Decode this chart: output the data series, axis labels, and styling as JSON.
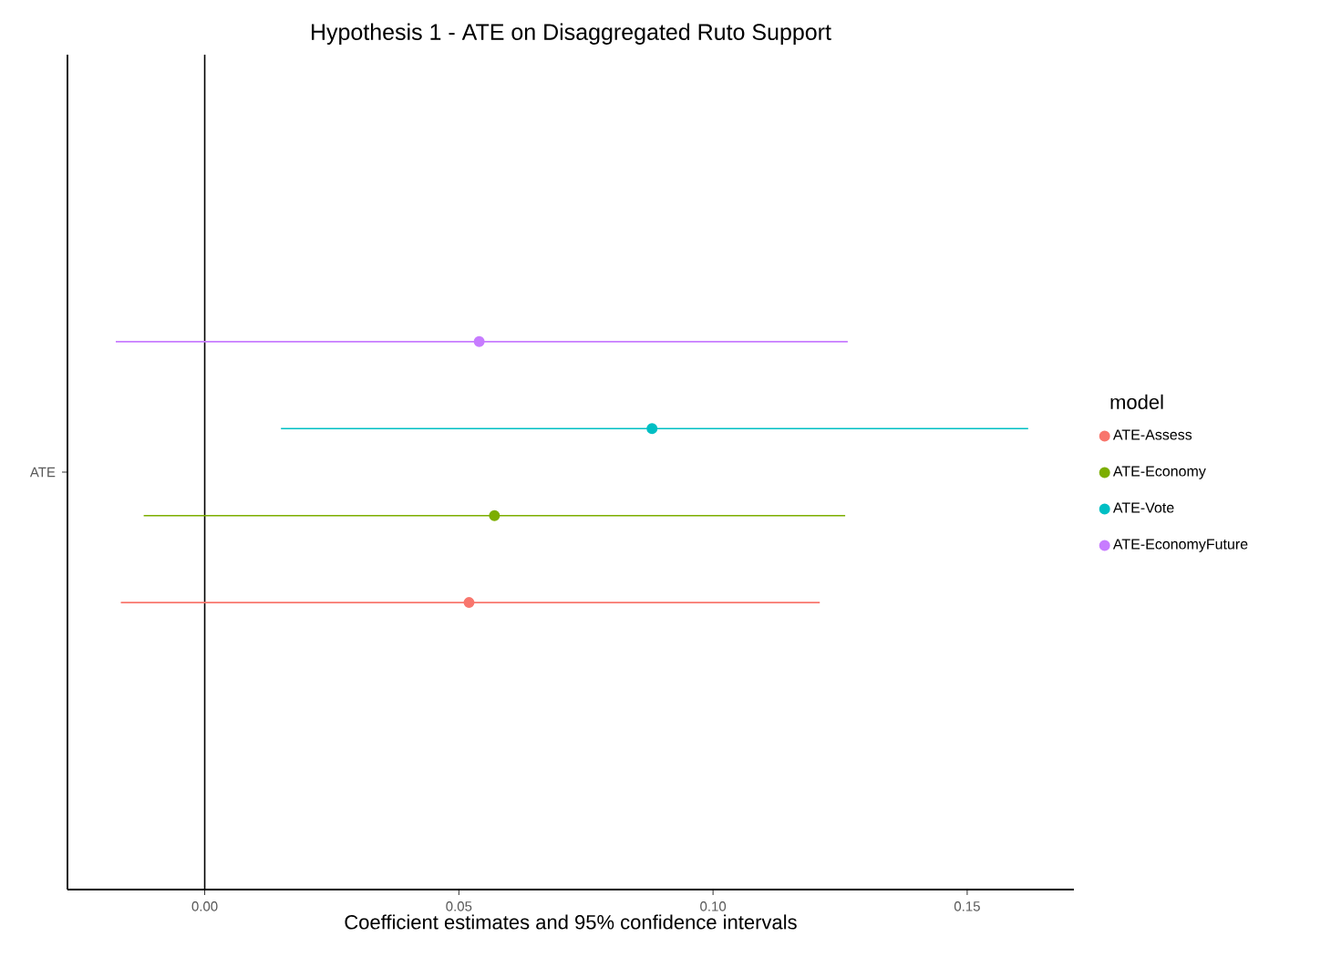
{
  "chart_data": {
    "type": "scatter",
    "orientation": "horizontal",
    "title": "Hypothesis 1 - ATE on Disaggregated Ruto Support",
    "xlabel": "Coefficient estimates and 95% confidence intervals",
    "legend_title": "model",
    "categories": [
      "ATE"
    ],
    "series": [
      {
        "name": "ATE-Assess",
        "color": "#f8766d",
        "values": [
          0.052
        ],
        "errors": [
          [
            -0.0165,
            0.121
          ]
        ]
      },
      {
        "name": "ATE-Economy",
        "color": "#7cae00",
        "values": [
          0.057
        ],
        "errors": [
          [
            -0.012,
            0.126
          ]
        ]
      },
      {
        "name": "ATE-Vote",
        "color": "#00bfc4",
        "values": [
          0.088
        ],
        "errors": [
          [
            0.015,
            0.162
          ]
        ]
      },
      {
        "name": "ATE-EconomyFuture",
        "color": "#c77cff",
        "values": [
          0.054
        ],
        "errors": [
          [
            -0.0175,
            0.1265
          ]
        ]
      }
    ],
    "xlim": [
      -0.027,
      0.171
    ],
    "xticks": [
      {
        "value": 0,
        "label": "0.00"
      },
      0.05,
      {
        "value": 0.1,
        "label": "0.10"
      },
      0.15
    ],
    "ref_lines": [
      {
        "axis": "x",
        "value": 0,
        "color": "#000000"
      }
    ],
    "grid": false,
    "legend": "right",
    "marker": "circle"
  }
}
